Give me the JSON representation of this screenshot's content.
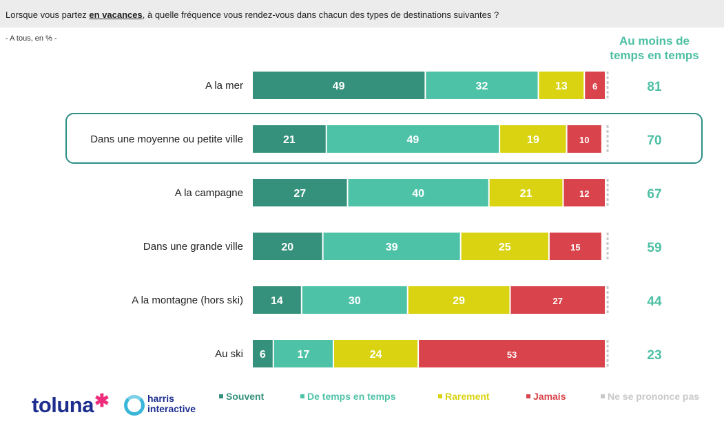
{
  "question": {
    "prefix": "Lorsque vous partez ",
    "emphasis": "en vacances",
    "suffix": ", à quelle fréquence vous rendez-vous dans chacun des types de destinations suivantes ?"
  },
  "base": "- A tous, en % -",
  "summary_header_line1": "Au moins de",
  "summary_header_line2": "temps en temps",
  "colors": {
    "souvent": "#35917b",
    "de_temps": "#4ec2a7",
    "rarement": "#d9d312",
    "jamais": "#d9434b",
    "nsp": "#c8c8c8",
    "summary": "#4cbfa4",
    "highlight_border": "#2c8d86"
  },
  "legend": [
    {
      "label": "Souvent",
      "color": "#35917b"
    },
    {
      "label": "De temps en temps",
      "color": "#4ec2a7"
    },
    {
      "label": "Rarement",
      "color": "#d9d312"
    },
    {
      "label": "Jamais",
      "color": "#d9434b"
    },
    {
      "label": "Ne se prononce pas",
      "color": "#c8c8c8"
    }
  ],
  "logos": {
    "toluna": "toluna",
    "harris_line1": "harris",
    "harris_line2": "interactive"
  },
  "chart_data": {
    "type": "bar",
    "orientation": "horizontal",
    "stacked": true,
    "categories": [
      "A la mer",
      "Dans une moyenne ou petite ville",
      "A la campagne",
      "Dans une grande ville",
      "A la montagne (hors ski)",
      "Au ski"
    ],
    "series": [
      {
        "name": "Souvent",
        "values": [
          49,
          21,
          27,
          20,
          14,
          6
        ]
      },
      {
        "name": "De temps en temps",
        "values": [
          32,
          49,
          40,
          39,
          30,
          17
        ]
      },
      {
        "name": "Rarement",
        "values": [
          13,
          19,
          21,
          25,
          29,
          24
        ]
      },
      {
        "name": "Jamais",
        "values": [
          6,
          10,
          12,
          15,
          27,
          53
        ]
      },
      {
        "name": "Ne se prononce pas",
        "values": [
          0,
          1,
          0,
          1,
          0,
          0
        ]
      }
    ],
    "summary_values": [
      81,
      70,
      67,
      59,
      44,
      23
    ],
    "highlighted_category": "Dans une moyenne ou petite ville",
    "unit": "%",
    "legend_position": "bottom"
  }
}
